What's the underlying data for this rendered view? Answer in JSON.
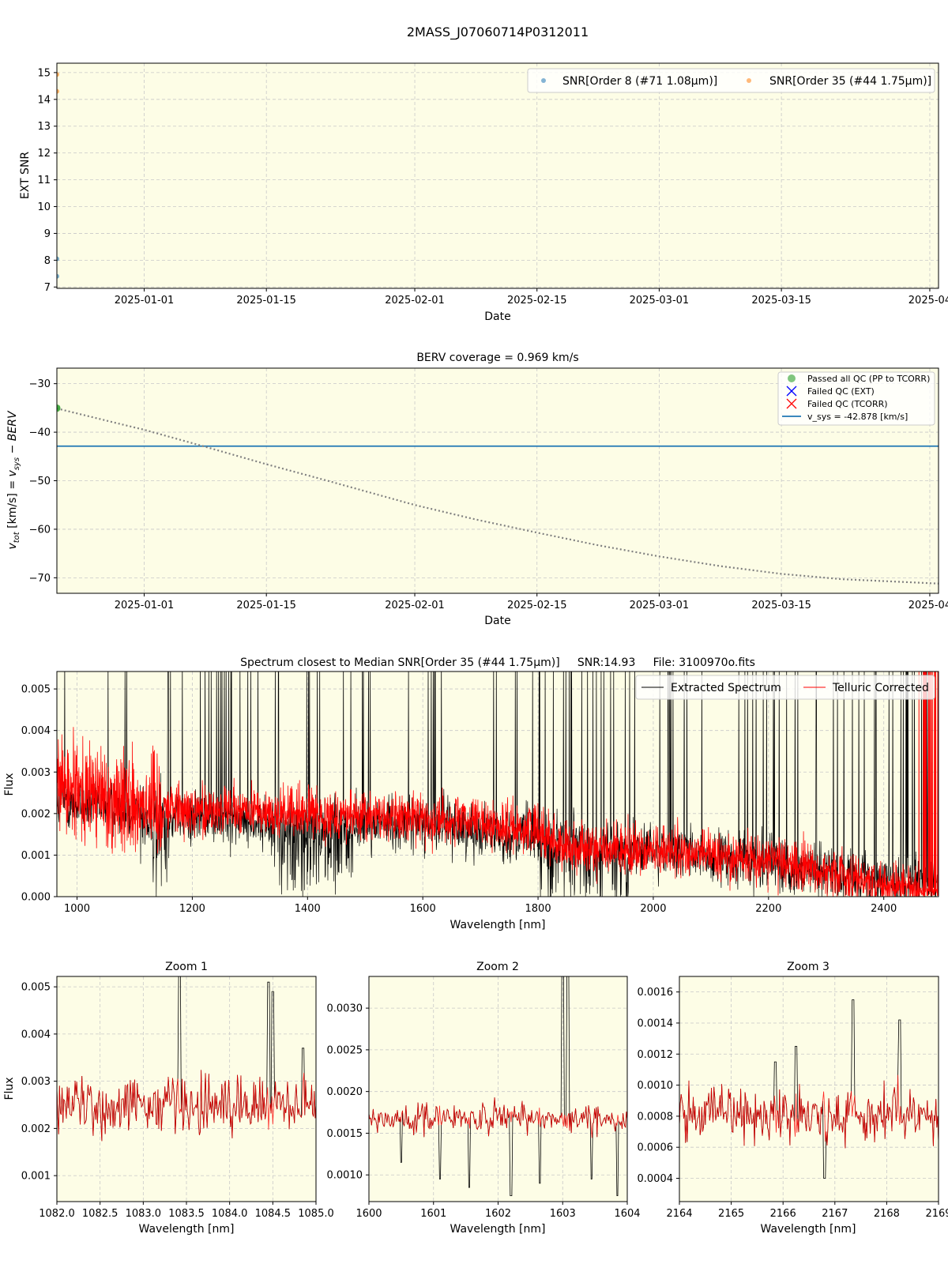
{
  "figure_title": "2MASS_J07060714P0312011",
  "colors": {
    "plot_bg": "#fdfde6",
    "snr_order8": "#1f77b4",
    "snr_order35": "#ff7f0e",
    "passed": "#2ca02c",
    "failed_ext": "#0000ff",
    "failed_tcorr": "#ff0000",
    "vsys": "#1f77b4",
    "berv_curve": "#808080",
    "extracted": "#000000",
    "telluric": "#ff0000",
    "grid": "#c8c8c8"
  },
  "chart_data": [
    {
      "id": "snr",
      "type": "scatter",
      "title": "",
      "xlabel": "Date",
      "ylabel": "EXT SNR",
      "xlim": [
        "2024-12-22",
        "2025-04-02"
      ],
      "ylim": [
        6.95,
        15.35
      ],
      "x_ticks": [
        "2025-01-01",
        "2025-01-15",
        "2025-02-01",
        "2025-02-15",
        "2025-03-01",
        "2025-03-15",
        "2025-04-01"
      ],
      "x_tick_labels": [
        "2025-01-01",
        "2025-01-15",
        "2025-02-01",
        "2025-02-15",
        "2025-03-01",
        "2025-03-15",
        "2025-04"
      ],
      "y_ticks": [
        7,
        8,
        9,
        10,
        11,
        12,
        13,
        14,
        15
      ],
      "y_tick_labels": [
        "7",
        "8",
        "9",
        "10",
        "11",
        "12",
        "13",
        "14",
        "15"
      ],
      "grid": true,
      "legend_position": "top-right",
      "series": [
        {
          "name": "SNR[Order 8 (#71 1.08μm)]",
          "points": [
            {
              "x": "2024-12-22",
              "y": 8.05
            },
            {
              "x": "2024-12-22",
              "y": 7.4
            }
          ]
        },
        {
          "name": "SNR[Order 35 (#44 1.75μm)]",
          "points": [
            {
              "x": "2024-12-22",
              "y": 14.93
            },
            {
              "x": "2024-12-22",
              "y": 14.3
            }
          ]
        }
      ]
    },
    {
      "id": "berv",
      "type": "line",
      "title": "BERV coverage = 0.969 km/s",
      "xlabel": "Date",
      "ylabel": "v_tot [km/s] = v_sys − BERV",
      "xlim": [
        "2024-12-22",
        "2025-04-02"
      ],
      "ylim": [
        -73.2,
        -26.8
      ],
      "x_ticks": [
        "2025-01-01",
        "2025-01-15",
        "2025-02-01",
        "2025-02-15",
        "2025-03-01",
        "2025-03-15",
        "2025-04-01"
      ],
      "x_tick_labels": [
        "2025-01-01",
        "2025-01-15",
        "2025-02-01",
        "2025-02-15",
        "2025-03-01",
        "2025-03-15",
        "2025-04"
      ],
      "y_ticks": [
        -70,
        -60,
        -50,
        -40,
        -30
      ],
      "y_tick_labels": [
        "−70",
        "−60",
        "−50",
        "−40",
        "−30"
      ],
      "grid": true,
      "legend_position": "top-right",
      "legend": [
        "Passed all QC (PP to TCORR)",
        "Failed QC (EXT)",
        "Failed QC (TCORR)",
        "v_sys = -42.878 [km/s]"
      ],
      "vsys": -42.878,
      "passed_points": [
        {
          "x": "2024-12-22",
          "y": -35.0
        },
        {
          "x": "2024-12-22",
          "y": -35.1
        }
      ],
      "berv_curve": [
        {
          "x": "2024-12-22",
          "y": -35.1
        },
        {
          "x": "2024-12-29",
          "y": -38.2
        },
        {
          "x": "2025-01-01",
          "y": -39.5
        },
        {
          "x": "2025-01-08",
          "y": -43.0
        },
        {
          "x": "2025-01-15",
          "y": -46.6
        },
        {
          "x": "2025-01-22",
          "y": -50.0
        },
        {
          "x": "2025-02-01",
          "y": -55.0
        },
        {
          "x": "2025-02-08",
          "y": -58.0
        },
        {
          "x": "2025-02-15",
          "y": -60.7
        },
        {
          "x": "2025-02-22",
          "y": -63.3
        },
        {
          "x": "2025-03-01",
          "y": -65.6
        },
        {
          "x": "2025-03-08",
          "y": -67.6
        },
        {
          "x": "2025-03-15",
          "y": -69.2
        },
        {
          "x": "2025-03-22",
          "y": -70.3
        },
        {
          "x": "2025-04-02",
          "y": -71.2
        }
      ]
    },
    {
      "id": "spectrum",
      "type": "line",
      "title": "Spectrum closest to Median SNR[Order 35 (#44 1.75μm)]     SNR:14.93     File: 3100970o.fits",
      "xlabel": "Wavelength [nm]",
      "ylabel": "Flux",
      "xlim": [
        965,
        2495
      ],
      "ylim": [
        0.0,
        0.00542
      ],
      "x_ticks": [
        1000,
        1200,
        1400,
        1600,
        1800,
        2000,
        2200,
        2400
      ],
      "x_tick_labels": [
        "1000",
        "1200",
        "1400",
        "1600",
        "1800",
        "2000",
        "2200",
        "2400"
      ],
      "y_ticks": [
        0,
        0.001,
        0.002,
        0.003,
        0.004,
        0.005
      ],
      "y_tick_labels": [
        "0.000",
        "0.001",
        "0.002",
        "0.003",
        "0.004",
        "0.005"
      ],
      "grid": true,
      "legend_position": "top-right",
      "series": [
        {
          "name": "Extracted Spectrum",
          "continuum": [
            [
              965,
              0.0023
            ],
            [
              1100,
              0.0021
            ],
            [
              1200,
              0.0019
            ],
            [
              1400,
              0.0017
            ],
            [
              1600,
              0.0018
            ],
            [
              1800,
              0.0014
            ],
            [
              2000,
              0.0011
            ],
            [
              2200,
              0.0008
            ],
            [
              2400,
              0.0004
            ],
            [
              2495,
              0.0003
            ]
          ]
        },
        {
          "name": "Telluric Corrected",
          "continuum": [
            [
              965,
              0.0026
            ],
            [
              1100,
              0.0023
            ],
            [
              1200,
              0.0021
            ],
            [
              1400,
              0.002
            ],
            [
              1600,
              0.0019
            ],
            [
              1800,
              0.0016
            ],
            [
              1850,
              0.0012
            ],
            [
              2000,
              0.0011
            ],
            [
              2200,
              0.0009
            ],
            [
              2400,
              0.0003
            ],
            [
              2495,
              0.0002
            ]
          ]
        }
      ]
    },
    {
      "id": "zoom1",
      "type": "line",
      "title": "Zoom 1",
      "xlabel": "Wavelength [nm]",
      "ylabel": "Flux",
      "xlim": [
        1082.0,
        1085.0
      ],
      "ylim": [
        0.00045,
        0.00522
      ],
      "x_ticks": [
        1082.0,
        1082.5,
        1083.0,
        1083.5,
        1084.0,
        1084.5,
        1085.0
      ],
      "x_tick_labels": [
        "1082.0",
        "1082.5",
        "1083.0",
        "1083.5",
        "1084.0",
        "1084.5",
        "1085.0"
      ],
      "y_ticks": [
        0.001,
        0.002,
        0.003,
        0.004,
        0.005
      ],
      "y_tick_labels": [
        "0.001",
        "0.002",
        "0.003",
        "0.004",
        "0.005"
      ],
      "grid": true,
      "level": 0.0025,
      "noise": 0.00045
    },
    {
      "id": "zoom2",
      "type": "line",
      "title": "Zoom 2",
      "xlabel": "Wavelength [nm]",
      "ylabel": "",
      "xlim": [
        1600,
        1604
      ],
      "ylim": [
        0.00068,
        0.00338
      ],
      "x_ticks": [
        1600,
        1601,
        1602,
        1603,
        1604
      ],
      "x_tick_labels": [
        "1600",
        "1601",
        "1602",
        "1603",
        "1604"
      ],
      "y_ticks": [
        0.001,
        0.0015,
        0.002,
        0.0025,
        0.003
      ],
      "y_tick_labels": [
        "0.0010",
        "0.0015",
        "0.0020",
        "0.0025",
        "0.0030"
      ],
      "grid": true,
      "level": 0.00168,
      "noise": 0.00012
    },
    {
      "id": "zoom3",
      "type": "line",
      "title": "Zoom 3",
      "xlabel": "Wavelength [nm]",
      "ylabel": "",
      "xlim": [
        2164,
        2169
      ],
      "ylim": [
        0.00025,
        0.0017
      ],
      "x_ticks": [
        2164,
        2165,
        2166,
        2167,
        2168,
        2169
      ],
      "x_tick_labels": [
        "2164",
        "2165",
        "2166",
        "2167",
        "2168",
        "2169"
      ],
      "y_ticks": [
        0.0004,
        0.0006,
        0.0008,
        0.001,
        0.0012,
        0.0014,
        0.0016
      ],
      "y_tick_labels": [
        "0.0004",
        "0.0006",
        "0.0008",
        "0.0010",
        "0.0012",
        "0.0014",
        "0.0016"
      ],
      "grid": true,
      "level": 0.0008,
      "noise": 0.00013
    }
  ]
}
